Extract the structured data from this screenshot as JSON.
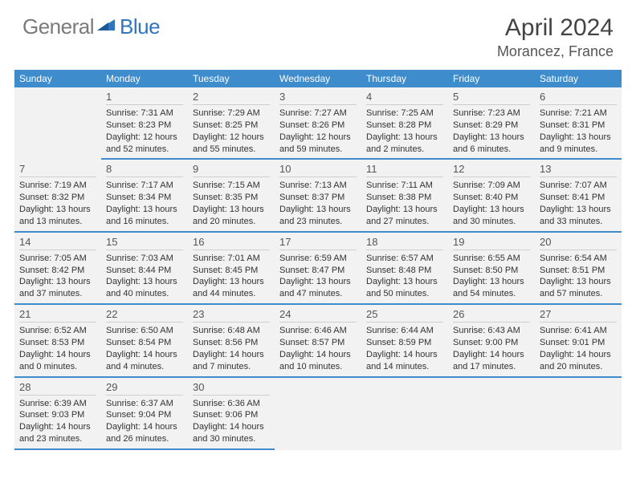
{
  "logo": {
    "general": "General",
    "blue": "Blue"
  },
  "title": {
    "month": "April 2024",
    "location": "Morancez, France"
  },
  "colors": {
    "brand_blue": "#3e8ccc",
    "logo_gray": "#7a7a7a",
    "logo_blue": "#2f76bc",
    "cell_bg": "#f2f2f2",
    "text": "#333333"
  },
  "weekdays": [
    "Sunday",
    "Monday",
    "Tuesday",
    "Wednesday",
    "Thursday",
    "Friday",
    "Saturday"
  ],
  "weeks": [
    [
      {
        "n": "",
        "sr": "",
        "ss": "",
        "dl1": "",
        "dl2": ""
      },
      {
        "n": "1",
        "sr": "Sunrise: 7:31 AM",
        "ss": "Sunset: 8:23 PM",
        "dl1": "Daylight: 12 hours",
        "dl2": "and 52 minutes."
      },
      {
        "n": "2",
        "sr": "Sunrise: 7:29 AM",
        "ss": "Sunset: 8:25 PM",
        "dl1": "Daylight: 12 hours",
        "dl2": "and 55 minutes."
      },
      {
        "n": "3",
        "sr": "Sunrise: 7:27 AM",
        "ss": "Sunset: 8:26 PM",
        "dl1": "Daylight: 12 hours",
        "dl2": "and 59 minutes."
      },
      {
        "n": "4",
        "sr": "Sunrise: 7:25 AM",
        "ss": "Sunset: 8:28 PM",
        "dl1": "Daylight: 13 hours",
        "dl2": "and 2 minutes."
      },
      {
        "n": "5",
        "sr": "Sunrise: 7:23 AM",
        "ss": "Sunset: 8:29 PM",
        "dl1": "Daylight: 13 hours",
        "dl2": "and 6 minutes."
      },
      {
        "n": "6",
        "sr": "Sunrise: 7:21 AM",
        "ss": "Sunset: 8:31 PM",
        "dl1": "Daylight: 13 hours",
        "dl2": "and 9 minutes."
      }
    ],
    [
      {
        "n": "7",
        "sr": "Sunrise: 7:19 AM",
        "ss": "Sunset: 8:32 PM",
        "dl1": "Daylight: 13 hours",
        "dl2": "and 13 minutes."
      },
      {
        "n": "8",
        "sr": "Sunrise: 7:17 AM",
        "ss": "Sunset: 8:34 PM",
        "dl1": "Daylight: 13 hours",
        "dl2": "and 16 minutes."
      },
      {
        "n": "9",
        "sr": "Sunrise: 7:15 AM",
        "ss": "Sunset: 8:35 PM",
        "dl1": "Daylight: 13 hours",
        "dl2": "and 20 minutes."
      },
      {
        "n": "10",
        "sr": "Sunrise: 7:13 AM",
        "ss": "Sunset: 8:37 PM",
        "dl1": "Daylight: 13 hours",
        "dl2": "and 23 minutes."
      },
      {
        "n": "11",
        "sr": "Sunrise: 7:11 AM",
        "ss": "Sunset: 8:38 PM",
        "dl1": "Daylight: 13 hours",
        "dl2": "and 27 minutes."
      },
      {
        "n": "12",
        "sr": "Sunrise: 7:09 AM",
        "ss": "Sunset: 8:40 PM",
        "dl1": "Daylight: 13 hours",
        "dl2": "and 30 minutes."
      },
      {
        "n": "13",
        "sr": "Sunrise: 7:07 AM",
        "ss": "Sunset: 8:41 PM",
        "dl1": "Daylight: 13 hours",
        "dl2": "and 33 minutes."
      }
    ],
    [
      {
        "n": "14",
        "sr": "Sunrise: 7:05 AM",
        "ss": "Sunset: 8:42 PM",
        "dl1": "Daylight: 13 hours",
        "dl2": "and 37 minutes."
      },
      {
        "n": "15",
        "sr": "Sunrise: 7:03 AM",
        "ss": "Sunset: 8:44 PM",
        "dl1": "Daylight: 13 hours",
        "dl2": "and 40 minutes."
      },
      {
        "n": "16",
        "sr": "Sunrise: 7:01 AM",
        "ss": "Sunset: 8:45 PM",
        "dl1": "Daylight: 13 hours",
        "dl2": "and 44 minutes."
      },
      {
        "n": "17",
        "sr": "Sunrise: 6:59 AM",
        "ss": "Sunset: 8:47 PM",
        "dl1": "Daylight: 13 hours",
        "dl2": "and 47 minutes."
      },
      {
        "n": "18",
        "sr": "Sunrise: 6:57 AM",
        "ss": "Sunset: 8:48 PM",
        "dl1": "Daylight: 13 hours",
        "dl2": "and 50 minutes."
      },
      {
        "n": "19",
        "sr": "Sunrise: 6:55 AM",
        "ss": "Sunset: 8:50 PM",
        "dl1": "Daylight: 13 hours",
        "dl2": "and 54 minutes."
      },
      {
        "n": "20",
        "sr": "Sunrise: 6:54 AM",
        "ss": "Sunset: 8:51 PM",
        "dl1": "Daylight: 13 hours",
        "dl2": "and 57 minutes."
      }
    ],
    [
      {
        "n": "21",
        "sr": "Sunrise: 6:52 AM",
        "ss": "Sunset: 8:53 PM",
        "dl1": "Daylight: 14 hours",
        "dl2": "and 0 minutes."
      },
      {
        "n": "22",
        "sr": "Sunrise: 6:50 AM",
        "ss": "Sunset: 8:54 PM",
        "dl1": "Daylight: 14 hours",
        "dl2": "and 4 minutes."
      },
      {
        "n": "23",
        "sr": "Sunrise: 6:48 AM",
        "ss": "Sunset: 8:56 PM",
        "dl1": "Daylight: 14 hours",
        "dl2": "and 7 minutes."
      },
      {
        "n": "24",
        "sr": "Sunrise: 6:46 AM",
        "ss": "Sunset: 8:57 PM",
        "dl1": "Daylight: 14 hours",
        "dl2": "and 10 minutes."
      },
      {
        "n": "25",
        "sr": "Sunrise: 6:44 AM",
        "ss": "Sunset: 8:59 PM",
        "dl1": "Daylight: 14 hours",
        "dl2": "and 14 minutes."
      },
      {
        "n": "26",
        "sr": "Sunrise: 6:43 AM",
        "ss": "Sunset: 9:00 PM",
        "dl1": "Daylight: 14 hours",
        "dl2": "and 17 minutes."
      },
      {
        "n": "27",
        "sr": "Sunrise: 6:41 AM",
        "ss": "Sunset: 9:01 PM",
        "dl1": "Daylight: 14 hours",
        "dl2": "and 20 minutes."
      }
    ],
    [
      {
        "n": "28",
        "sr": "Sunrise: 6:39 AM",
        "ss": "Sunset: 9:03 PM",
        "dl1": "Daylight: 14 hours",
        "dl2": "and 23 minutes."
      },
      {
        "n": "29",
        "sr": "Sunrise: 6:37 AM",
        "ss": "Sunset: 9:04 PM",
        "dl1": "Daylight: 14 hours",
        "dl2": "and 26 minutes."
      },
      {
        "n": "30",
        "sr": "Sunrise: 6:36 AM",
        "ss": "Sunset: 9:06 PM",
        "dl1": "Daylight: 14 hours",
        "dl2": "and 30 minutes."
      },
      {
        "n": "",
        "sr": "",
        "ss": "",
        "dl1": "",
        "dl2": ""
      },
      {
        "n": "",
        "sr": "",
        "ss": "",
        "dl1": "",
        "dl2": ""
      },
      {
        "n": "",
        "sr": "",
        "ss": "",
        "dl1": "",
        "dl2": ""
      },
      {
        "n": "",
        "sr": "",
        "ss": "",
        "dl1": "",
        "dl2": ""
      }
    ]
  ]
}
